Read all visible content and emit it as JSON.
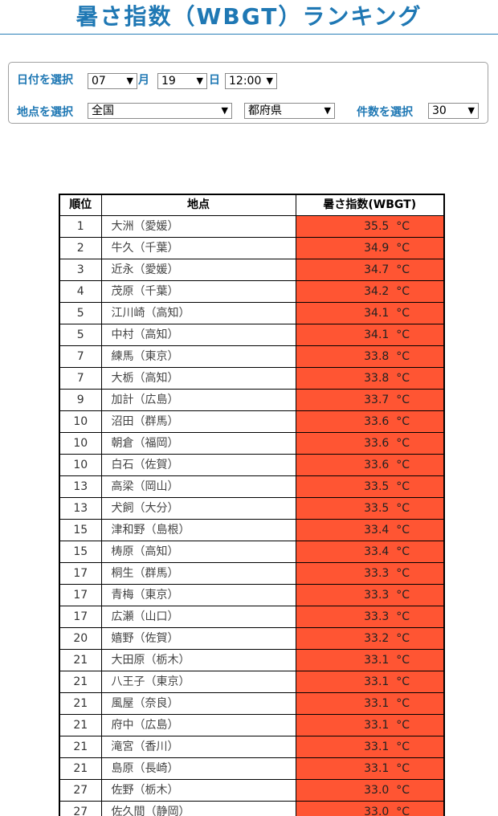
{
  "page": {
    "title": "暑さ指数（WBGT）ランキング"
  },
  "filters": {
    "date_label": "日付を選択",
    "month_value": "07",
    "month_unit": "月",
    "day_value": "19",
    "day_unit": "日",
    "time_value": "12:00",
    "place_label": "地点を選択",
    "region_value": "全国",
    "prefecture_value": "都府県",
    "count_label": "件数を選択",
    "count_value": "30"
  },
  "table": {
    "headers": [
      "順位",
      "地点",
      "暑さ指数(WBGT)"
    ],
    "unit": "°C",
    "value_color": "#ff5533",
    "rows": [
      {
        "rank": "1",
        "place": "大洲（愛媛）",
        "value": "35.5"
      },
      {
        "rank": "2",
        "place": "牛久（千葉）",
        "value": "34.9"
      },
      {
        "rank": "3",
        "place": "近永（愛媛）",
        "value": "34.7"
      },
      {
        "rank": "4",
        "place": "茂原（千葉）",
        "value": "34.2"
      },
      {
        "rank": "5",
        "place": "江川崎（高知）",
        "value": "34.1"
      },
      {
        "rank": "5",
        "place": "中村（高知）",
        "value": "34.1"
      },
      {
        "rank": "7",
        "place": "練馬（東京）",
        "value": "33.8"
      },
      {
        "rank": "7",
        "place": "大栃（高知）",
        "value": "33.8"
      },
      {
        "rank": "9",
        "place": "加計（広島）",
        "value": "33.7"
      },
      {
        "rank": "10",
        "place": "沼田（群馬）",
        "value": "33.6"
      },
      {
        "rank": "10",
        "place": "朝倉（福岡）",
        "value": "33.6"
      },
      {
        "rank": "10",
        "place": "白石（佐賀）",
        "value": "33.6"
      },
      {
        "rank": "13",
        "place": "高梁（岡山）",
        "value": "33.5"
      },
      {
        "rank": "13",
        "place": "犬飼（大分）",
        "value": "33.5"
      },
      {
        "rank": "15",
        "place": "津和野（島根）",
        "value": "33.4"
      },
      {
        "rank": "15",
        "place": "梼原（高知）",
        "value": "33.4"
      },
      {
        "rank": "17",
        "place": "桐生（群馬）",
        "value": "33.3"
      },
      {
        "rank": "17",
        "place": "青梅（東京）",
        "value": "33.3"
      },
      {
        "rank": "17",
        "place": "広瀬（山口）",
        "value": "33.3"
      },
      {
        "rank": "20",
        "place": "嬉野（佐賀）",
        "value": "33.2"
      },
      {
        "rank": "21",
        "place": "大田原（栃木）",
        "value": "33.1"
      },
      {
        "rank": "21",
        "place": "八王子（東京）",
        "value": "33.1"
      },
      {
        "rank": "21",
        "place": "風屋（奈良）",
        "value": "33.1"
      },
      {
        "rank": "21",
        "place": "府中（広島）",
        "value": "33.1"
      },
      {
        "rank": "21",
        "place": "滝宮（香川）",
        "value": "33.1"
      },
      {
        "rank": "21",
        "place": "島原（長崎）",
        "value": "33.1"
      },
      {
        "rank": "27",
        "place": "佐野（栃木）",
        "value": "33.0"
      },
      {
        "rank": "27",
        "place": "佐久間（静岡）",
        "value": "33.0"
      }
    ]
  }
}
